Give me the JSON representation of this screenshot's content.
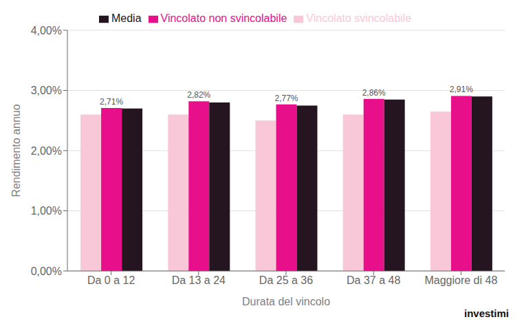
{
  "chart_data": {
    "type": "bar",
    "categories": [
      "Da 0 a 12",
      "Da 13 a 24",
      "Da 25 a 36",
      "Da 37 a 48",
      "Maggiore di 48"
    ],
    "series": [
      {
        "name": "Vincolato svincolabile",
        "color": "#f9c8d8",
        "values": [
          0.026,
          0.026,
          0.025,
          0.026,
          0.0265
        ]
      },
      {
        "name": "Vincolato non svincolabile",
        "color": "#e8108a",
        "values": [
          0.0271,
          0.0282,
          0.0277,
          0.0286,
          0.0291
        ],
        "data_labels": true,
        "value_labels": [
          "2,71%",
          "2,82%",
          "2,77%",
          "2,86%",
          "2,91%"
        ]
      },
      {
        "name": "Media",
        "color": "#251520",
        "values": [
          0.027,
          0.028,
          0.0275,
          0.0285,
          0.029
        ]
      }
    ],
    "xlabel": "Durata del vincolo",
    "ylabel": "Rendimento annuo",
    "ylim": [
      0.0,
      0.04
    ],
    "yticks": [
      {
        "value": 0.0,
        "label": "0,00%"
      },
      {
        "value": 0.01,
        "label": "1,00%"
      },
      {
        "value": 0.02,
        "label": "2,00%"
      },
      {
        "value": 0.03,
        "label": "3,00%"
      },
      {
        "value": 0.04,
        "label": "4,00%"
      }
    ],
    "grid": true,
    "legend": "top",
    "annotations": [
      "investimi"
    ]
  }
}
